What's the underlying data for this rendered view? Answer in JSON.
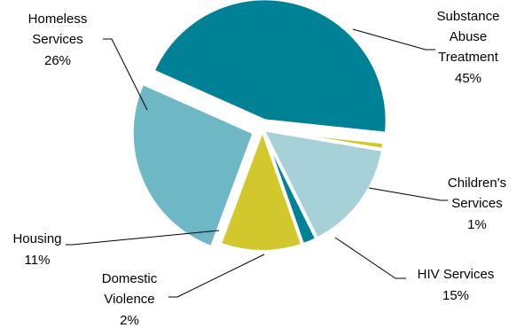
{
  "chart_data": {
    "type": "pie",
    "title": "",
    "legend": "none",
    "slices": [
      {
        "label_lines": [
          "Substance",
          "Abuse",
          "Treatment"
        ],
        "value": 45,
        "value_label": "45%",
        "color": "#008296"
      },
      {
        "label_lines": [
          "Children's",
          "Services"
        ],
        "value": 1,
        "value_label": "1%",
        "color": "#d2c82d"
      },
      {
        "label_lines": [
          "HIV Services"
        ],
        "value": 15,
        "value_label": "15%",
        "color": "#a6d1d9"
      },
      {
        "label_lines": [
          "Domestic",
          "Violence"
        ],
        "value": 2,
        "value_label": "2%",
        "color": "#008296"
      },
      {
        "label_lines": [
          "Housing"
        ],
        "value": 11,
        "value_label": "11%",
        "color": "#d2c82d"
      },
      {
        "label_lines": [
          "Homeless",
          "Services"
        ],
        "value": 26,
        "value_label": "26%",
        "color": "#6eb8c6"
      }
    ]
  }
}
